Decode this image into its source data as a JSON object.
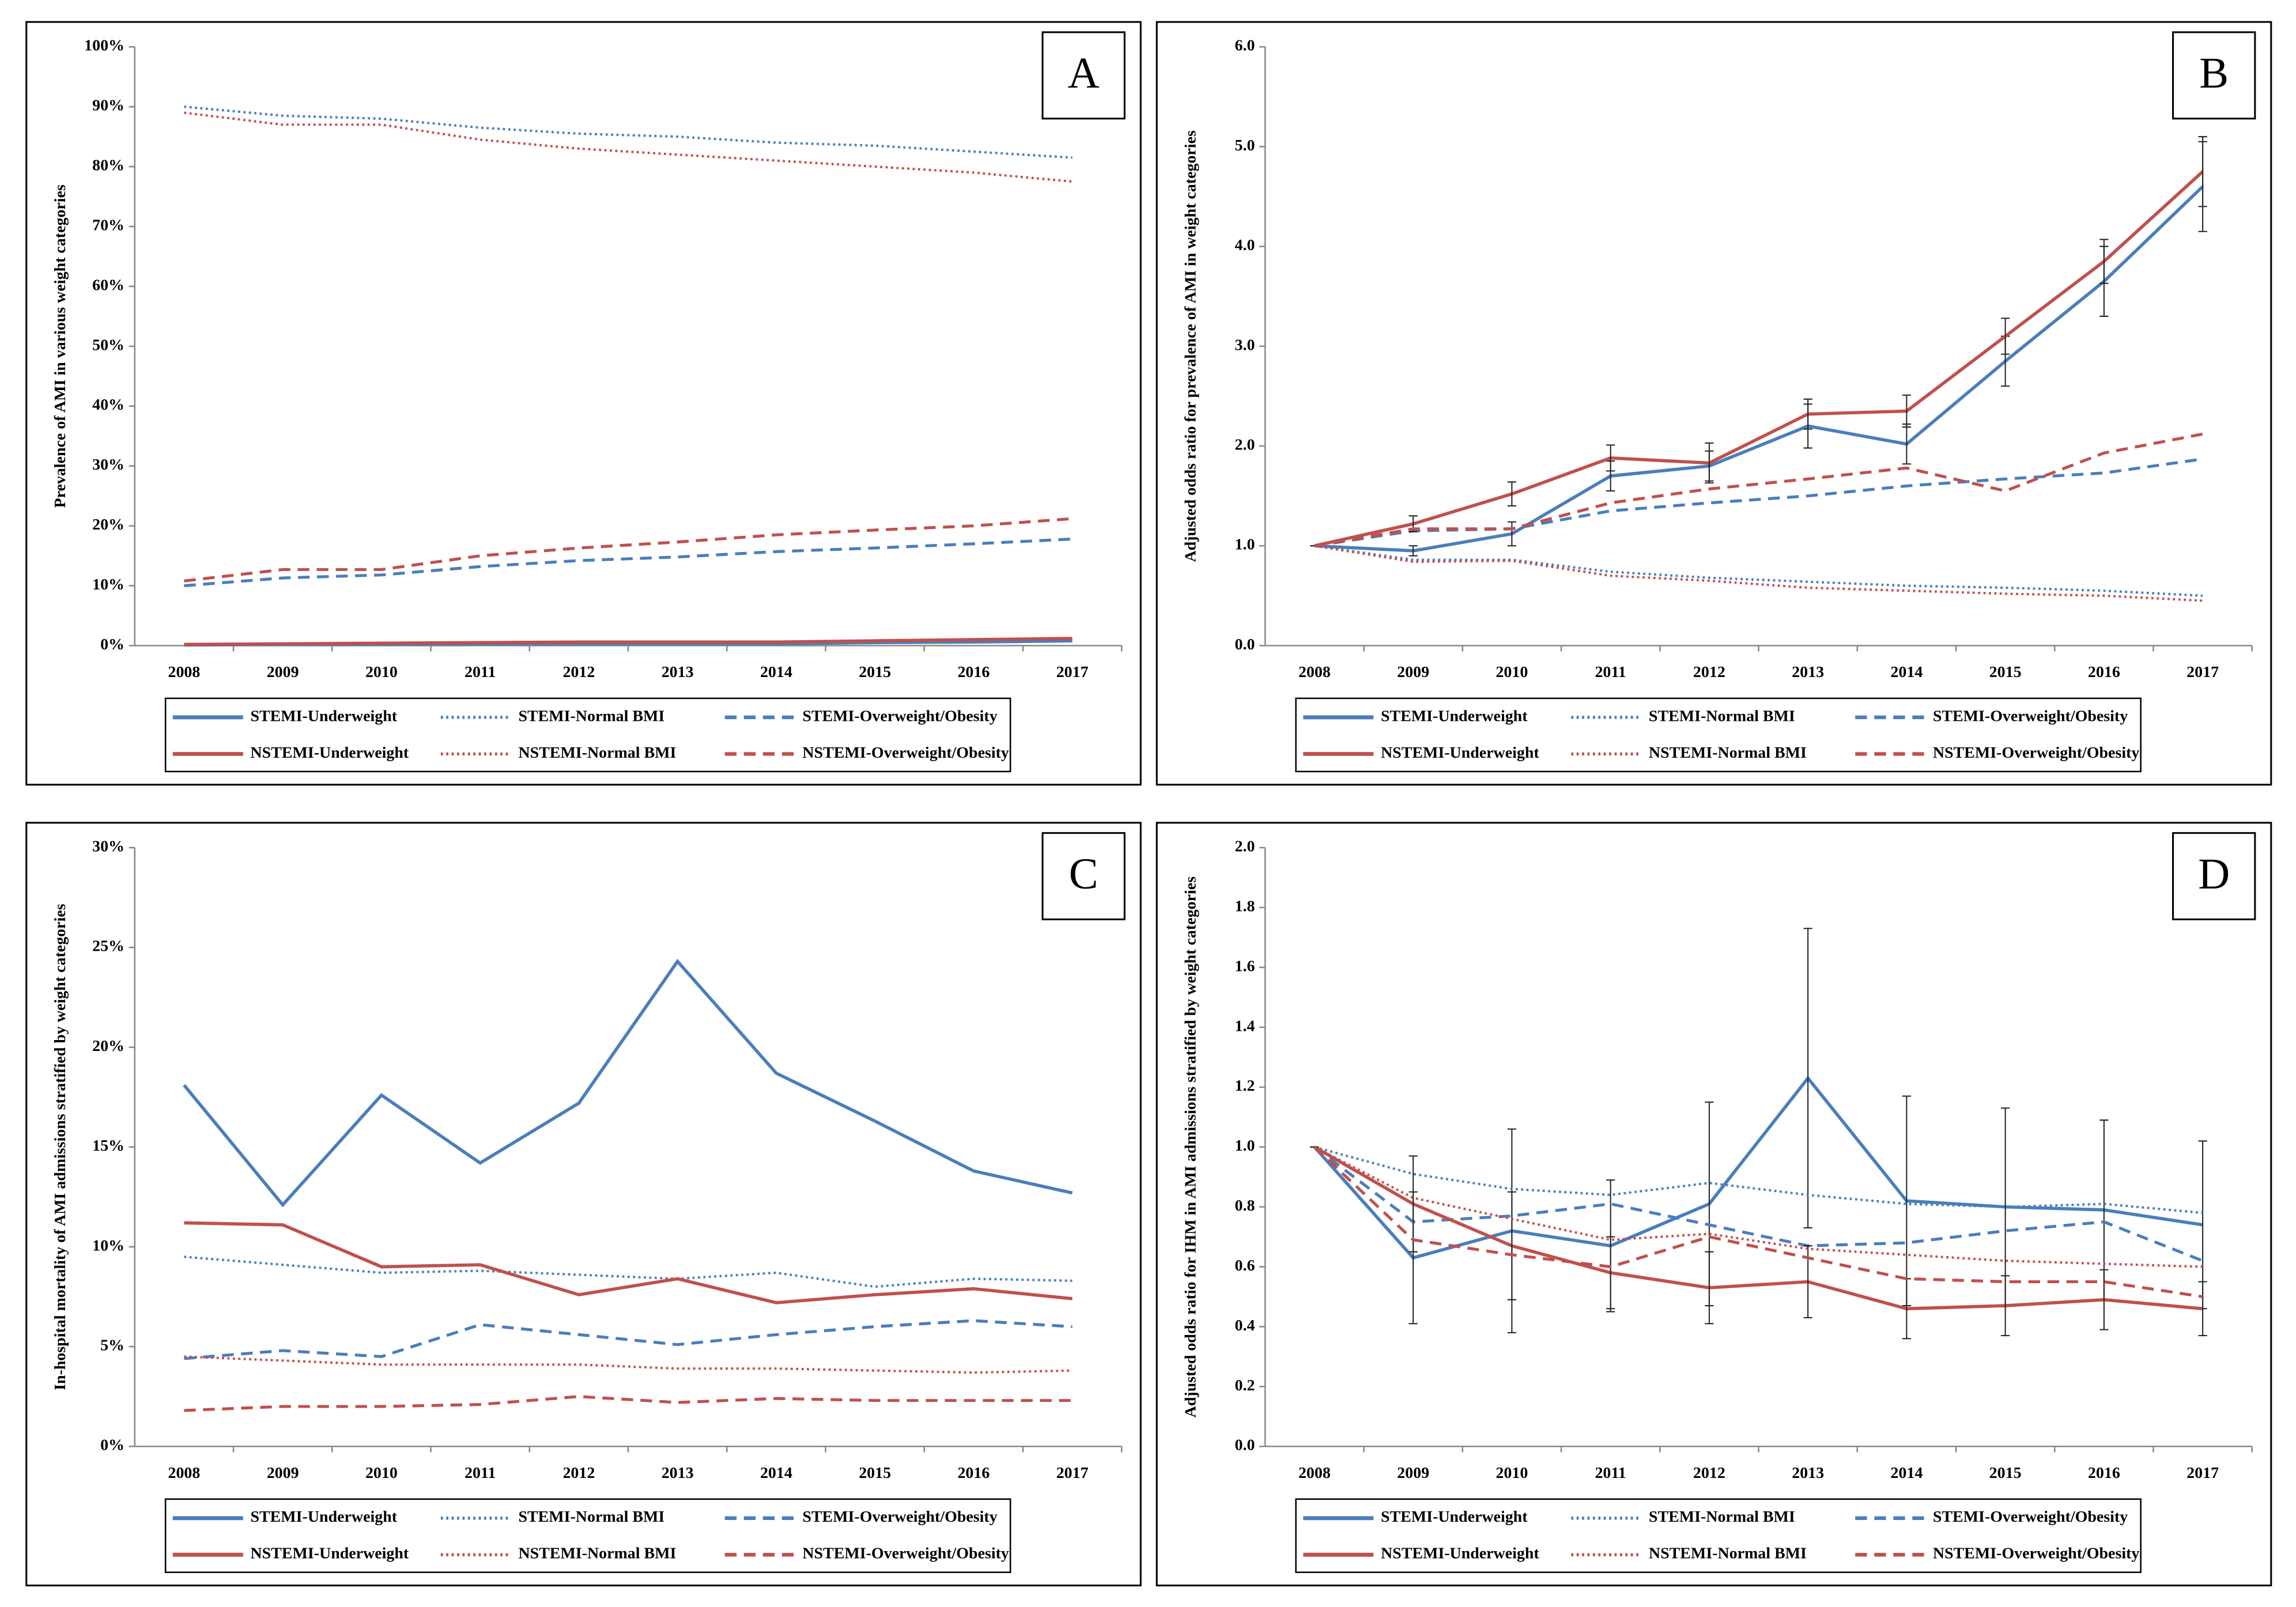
{
  "chart_data": [
    {
      "type": "line",
      "label": "A",
      "y_label": "Prevalence of AMI in various weight categories",
      "categories": [
        "2008",
        "2009",
        "2010",
        "2011",
        "2012",
        "2013",
        "2014",
        "2015",
        "2016",
        "2017"
      ],
      "ylim": [
        0,
        100
      ],
      "yticks": [
        {
          "value": 0,
          "label": "0%"
        },
        {
          "value": 10,
          "label": "10%"
        },
        {
          "value": 20,
          "label": "20%"
        },
        {
          "value": 30,
          "label": "30%"
        },
        {
          "value": 40,
          "label": "40%"
        },
        {
          "value": 50,
          "label": "50%"
        },
        {
          "value": 60,
          "label": "60%"
        },
        {
          "value": 70,
          "label": "70%"
        },
        {
          "value": 80,
          "label": "80%"
        },
        {
          "value": 90,
          "label": "90%"
        },
        {
          "value": 100,
          "label": "100%"
        }
      ],
      "series": [
        {
          "name": "STEMI-Underweight",
          "color": "#4a7ebb",
          "dash": "solid",
          "values": [
            0.1,
            0.2,
            0.2,
            0.3,
            0.3,
            0.3,
            0.3,
            0.5,
            0.6,
            0.8
          ]
        },
        {
          "name": "STEMI-Normal BMI",
          "color": "#4a7ebb",
          "dash": "dotted",
          "values": [
            90,
            88.5,
            88,
            86.5,
            85.5,
            85,
            84,
            83.5,
            82.5,
            81.5
          ]
        },
        {
          "name": "STEMI-Overweight/Obesity",
          "color": "#4a7ebb",
          "dash": "dashed",
          "values": [
            10,
            11.3,
            11.8,
            13.2,
            14.2,
            14.8,
            15.7,
            16.3,
            17,
            17.8
          ]
        },
        {
          "name": "NSTEMI-Underweight",
          "color": "#c0504d",
          "dash": "solid",
          "values": [
            0.2,
            0.3,
            0.4,
            0.5,
            0.6,
            0.6,
            0.6,
            0.8,
            1,
            1.2
          ]
        },
        {
          "name": "NSTEMI-Normal BMI",
          "color": "#c0504d",
          "dash": "dotted",
          "values": [
            89,
            87,
            87,
            84.5,
            83,
            82,
            81,
            80,
            79,
            77.5
          ]
        },
        {
          "name": "NSTEMI-Overweight/Obesity",
          "color": "#c0504d",
          "dash": "dashed",
          "values": [
            10.8,
            12.7,
            12.7,
            15,
            16.3,
            17.3,
            18.5,
            19.3,
            20,
            21.2
          ]
        }
      ]
    },
    {
      "type": "line",
      "label": "B",
      "y_label": "Adjusted odds ratio for prevalence of AMI in weight categories",
      "categories": [
        "2008",
        "2009",
        "2010",
        "2011",
        "2012",
        "2013",
        "2014",
        "2015",
        "2016",
        "2017"
      ],
      "ylim": [
        0,
        6
      ],
      "yticks": [
        {
          "value": 0,
          "label": "0.0"
        },
        {
          "value": 1,
          "label": "1.0"
        },
        {
          "value": 2,
          "label": "2.0"
        },
        {
          "value": 3,
          "label": "3.0"
        },
        {
          "value": 4,
          "label": "4.0"
        },
        {
          "value": 5,
          "label": "5.0"
        },
        {
          "value": 6,
          "label": "6.0"
        }
      ],
      "series": [
        {
          "name": "STEMI-Underweight",
          "color": "#4a7ebb",
          "dash": "solid",
          "values": [
            1,
            0.95,
            1.12,
            1.7,
            1.8,
            2.2,
            2.02,
            2.85,
            3.65,
            4.6
          ],
          "errors": [
            0,
            0.05,
            0.12,
            0.15,
            0.15,
            0.22,
            0.2,
            0.25,
            0.35,
            0.45
          ]
        },
        {
          "name": "STEMI-Normal BMI",
          "color": "#4a7ebb",
          "dash": "dotted",
          "values": [
            1,
            0.86,
            0.86,
            0.74,
            0.68,
            0.64,
            0.6,
            0.58,
            0.55,
            0.5
          ]
        },
        {
          "name": "STEMI-Overweight/Obesity",
          "color": "#4a7ebb",
          "dash": "dashed",
          "values": [
            1,
            1.15,
            1.17,
            1.35,
            1.43,
            1.5,
            1.6,
            1.67,
            1.73,
            1.87
          ]
        },
        {
          "name": "NSTEMI-Underweight",
          "color": "#c0504d",
          "dash": "solid",
          "values": [
            1,
            1.22,
            1.52,
            1.88,
            1.83,
            2.32,
            2.35,
            3.1,
            3.85,
            4.75
          ],
          "errors": [
            0,
            0.08,
            0.12,
            0.13,
            0.2,
            0.15,
            0.16,
            0.18,
            0.22,
            0.35
          ]
        },
        {
          "name": "NSTEMI-Normal BMI",
          "color": "#c0504d",
          "dash": "dotted",
          "values": [
            1,
            0.84,
            0.85,
            0.7,
            0.65,
            0.58,
            0.55,
            0.52,
            0.5,
            0.45
          ]
        },
        {
          "name": "NSTEMI-Overweight/Obesity",
          "color": "#c0504d",
          "dash": "dashed",
          "values": [
            1,
            1.17,
            1.17,
            1.43,
            1.57,
            1.67,
            1.78,
            1.55,
            1.93,
            2.12
          ]
        }
      ]
    },
    {
      "type": "line",
      "label": "C",
      "y_label": "In-hospital mortality of AMI admissions stratified by weight categories",
      "categories": [
        "2008",
        "2009",
        "2010",
        "2011",
        "2012",
        "2013",
        "2014",
        "2015",
        "2016",
        "2017"
      ],
      "ylim": [
        0,
        30
      ],
      "yticks": [
        {
          "value": 0,
          "label": "0%"
        },
        {
          "value": 5,
          "label": "5%"
        },
        {
          "value": 10,
          "label": "10%"
        },
        {
          "value": 15,
          "label": "15%"
        },
        {
          "value": 20,
          "label": "20%"
        },
        {
          "value": 25,
          "label": "25%"
        },
        {
          "value": 30,
          "label": "30%"
        }
      ],
      "series": [
        {
          "name": "STEMI-Underweight",
          "color": "#4a7ebb",
          "dash": "solid",
          "values": [
            18.1,
            12.1,
            17.6,
            14.2,
            17.2,
            24.3,
            18.7,
            16.3,
            13.8,
            12.7
          ]
        },
        {
          "name": "STEMI-Normal BMI",
          "color": "#4a7ebb",
          "dash": "dotted",
          "values": [
            9.5,
            9.1,
            8.7,
            8.8,
            8.6,
            8.4,
            8.7,
            8.0,
            8.4,
            8.3
          ]
        },
        {
          "name": "STEMI-Overweight/Obesity",
          "color": "#4a7ebb",
          "dash": "dashed",
          "values": [
            4.4,
            4.8,
            4.5,
            6.1,
            5.6,
            5.1,
            5.6,
            6.0,
            6.3,
            6.0
          ]
        },
        {
          "name": "NSTEMI-Underweight",
          "color": "#c0504d",
          "dash": "solid",
          "values": [
            11.2,
            11.1,
            9.0,
            9.1,
            7.6,
            8.4,
            7.2,
            7.6,
            7.9,
            7.4
          ]
        },
        {
          "name": "NSTEMI-Normal BMI",
          "color": "#c0504d",
          "dash": "dotted",
          "values": [
            4.5,
            4.3,
            4.1,
            4.1,
            4.1,
            3.9,
            3.9,
            3.8,
            3.7,
            3.8
          ]
        },
        {
          "name": "NSTEMI-Overweight/Obesity",
          "color": "#c0504d",
          "dash": "dashed",
          "values": [
            1.8,
            2.0,
            2.0,
            2.1,
            2.5,
            2.2,
            2.4,
            2.3,
            2.3,
            2.3
          ]
        }
      ]
    },
    {
      "type": "line",
      "label": "D",
      "y_label": "Adjusted odds ratio for IHM in AMI admissions stratified by weight categories",
      "categories": [
        "2008",
        "2009",
        "2010",
        "2011",
        "2012",
        "2013",
        "2014",
        "2015",
        "2016",
        "2017"
      ],
      "ylim": [
        0,
        2
      ],
      "yticks": [
        {
          "value": 0,
          "label": "0.0"
        },
        {
          "value": 0.2,
          "label": "0.2"
        },
        {
          "value": 0.4,
          "label": "0.4"
        },
        {
          "value": 0.6,
          "label": "0.6"
        },
        {
          "value": 0.8,
          "label": "0.8"
        },
        {
          "value": 1,
          "label": "1.0"
        },
        {
          "value": 1.2,
          "label": "1.2"
        },
        {
          "value": 1.4,
          "label": "1.4"
        },
        {
          "value": 1.6,
          "label": "1.6"
        },
        {
          "value": 1.8,
          "label": "1.8"
        },
        {
          "value": 2,
          "label": "2.0"
        }
      ],
      "series": [
        {
          "name": "STEMI-Underweight",
          "color": "#4a7ebb",
          "dash": "solid",
          "values": [
            1,
            0.63,
            0.72,
            0.67,
            0.81,
            1.23,
            0.82,
            0.8,
            0.79,
            0.74
          ],
          "errors": [
            0,
            0.22,
            0.34,
            0.22,
            0.34,
            0.5,
            0.35,
            0.33,
            0.3,
            0.28
          ]
        },
        {
          "name": "STEMI-Normal BMI",
          "color": "#4a7ebb",
          "dash": "dotted",
          "values": [
            1,
            0.91,
            0.86,
            0.84,
            0.88,
            0.84,
            0.81,
            0.8,
            0.81,
            0.78
          ]
        },
        {
          "name": "STEMI-Overweight/Obesity",
          "color": "#4a7ebb",
          "dash": "dashed",
          "values": [
            1,
            0.75,
            0.77,
            0.81,
            0.74,
            0.67,
            0.68,
            0.72,
            0.75,
            0.62
          ]
        },
        {
          "name": "NSTEMI-Underweight",
          "color": "#c0504d",
          "dash": "solid",
          "values": [
            1,
            0.81,
            0.67,
            0.58,
            0.53,
            0.55,
            0.46,
            0.47,
            0.49,
            0.46
          ],
          "errors": [
            0,
            0.16,
            0.18,
            0.12,
            0.12,
            0.12,
            0.1,
            0.1,
            0.1,
            0.09
          ]
        },
        {
          "name": "NSTEMI-Normal BMI",
          "color": "#c0504d",
          "dash": "dotted",
          "values": [
            1,
            0.83,
            0.76,
            0.69,
            0.71,
            0.66,
            0.64,
            0.62,
            0.61,
            0.6
          ]
        },
        {
          "name": "NSTEMI-Overweight/Obesity",
          "color": "#c0504d",
          "dash": "dashed",
          "values": [
            1,
            0.69,
            0.64,
            0.6,
            0.7,
            0.63,
            0.56,
            0.55,
            0.55,
            0.5
          ]
        }
      ]
    }
  ]
}
